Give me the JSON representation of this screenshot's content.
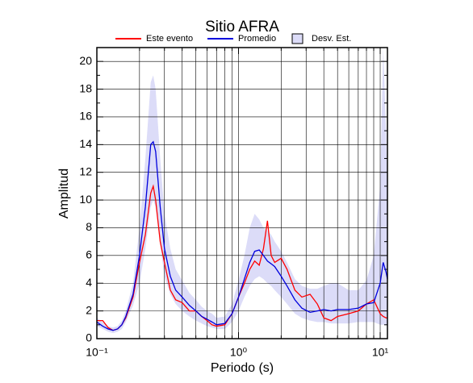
{
  "chart_data": {
    "type": "line",
    "title": "Sitio AFRA",
    "x_label": "Periodo (s)",
    "y_label": "Amplitud",
    "x_scale": "log",
    "grid": true,
    "xlim": [
      0.1,
      11.25
    ],
    "ylim": [
      0,
      21
    ],
    "xticks": [
      {
        "value": 0.1,
        "label": "10⁻¹"
      },
      {
        "value": 1,
        "label": "10⁰"
      },
      {
        "value": 10,
        "label": "10¹"
      }
    ],
    "xminorticks": [
      0.2,
      0.3,
      0.4,
      0.5,
      0.6,
      0.7,
      0.8,
      0.9,
      2,
      3,
      4,
      5,
      6,
      7,
      8,
      9
    ],
    "yticks": [
      0,
      2,
      4,
      6,
      8,
      10,
      12,
      14,
      16,
      18,
      20
    ],
    "yminorticks": [
      1,
      3,
      5,
      7,
      9,
      11,
      13,
      15,
      17,
      19
    ],
    "x": [
      0.1,
      0.11,
      0.12,
      0.13,
      0.14,
      0.15,
      0.16,
      0.18,
      0.2,
      0.22,
      0.24,
      0.25,
      0.26,
      0.28,
      0.3,
      0.33,
      0.36,
      0.4,
      0.45,
      0.5,
      0.55,
      0.6,
      0.65,
      0.7,
      0.8,
      0.9,
      1.0,
      1.1,
      1.2,
      1.3,
      1.4,
      1.5,
      1.6,
      1.7,
      1.8,
      2.0,
      2.2,
      2.5,
      2.8,
      3.2,
      3.6,
      4,
      4.5,
      5,
      6,
      7,
      8,
      9,
      10,
      10.5,
      11,
      11.25
    ],
    "band": {
      "name": "Desv. Est.",
      "color": "#dcdcf8",
      "upper": [
        1.5,
        1.2,
        0.9,
        0.8,
        0.9,
        1.3,
        2.0,
        4.0,
        8.0,
        13,
        18.5,
        19,
        18,
        13,
        9,
        6.5,
        5,
        4.2,
        3.3,
        2.8,
        2.3,
        2.0,
        1.8,
        1.5,
        1.6,
        2.5,
        4.2,
        6.0,
        8.0,
        9.0,
        8.6,
        8.0,
        7.8,
        7.5,
        7.0,
        6.3,
        5.5,
        4.3,
        3.8,
        3.6,
        3.6,
        3.8,
        4.0,
        4.0,
        3.5,
        3.5,
        4.2,
        6,
        11,
        21,
        15,
        10
      ],
      "lower": [
        0.9,
        0.7,
        0.5,
        0.4,
        0.5,
        0.7,
        1.2,
        2.4,
        4.0,
        6.5,
        9.5,
        10,
        9.5,
        6.8,
        4.5,
        3.2,
        2.5,
        2.0,
        1.6,
        1.3,
        1.1,
        0.9,
        0.8,
        0.7,
        0.7,
        1.2,
        2.0,
        3.0,
        3.8,
        4.3,
        4.5,
        4.3,
        4.0,
        3.8,
        3.5,
        3.0,
        2.5,
        1.8,
        1.5,
        1.3,
        1.2,
        1.2,
        1.1,
        1.1,
        1.1,
        1.2,
        1.2,
        1.2,
        1.0,
        1.0,
        1.0,
        1.0
      ]
    },
    "series": [
      {
        "name": "Este evento",
        "color": "#ff0000",
        "values": [
          1.3,
          1.3,
          0.8,
          0.6,
          0.7,
          1.0,
          1.5,
          3.0,
          5.5,
          7.5,
          10.5,
          11.0,
          10.0,
          7.0,
          5.5,
          3.5,
          2.8,
          2.6,
          2.0,
          2.0,
          1.6,
          1.3,
          1.0,
          0.9,
          1.0,
          1.8,
          3.0,
          4.0,
          5.0,
          5.6,
          5.3,
          6.5,
          8.5,
          6.0,
          5.5,
          5.8,
          5.0,
          3.5,
          3.0,
          3.2,
          2.5,
          1.5,
          1.3,
          1.6,
          1.8,
          2.0,
          2.5,
          2.8,
          1.8,
          1.6,
          1.5,
          1.5
        ]
      },
      {
        "name": "Promedio",
        "color": "#0000dd",
        "values": [
          1.2,
          0.9,
          0.7,
          0.6,
          0.7,
          1.0,
          1.6,
          3.2,
          6.0,
          9.5,
          14.0,
          14.2,
          13.5,
          9.5,
          6.5,
          4.5,
          3.5,
          3.0,
          2.4,
          2.0,
          1.6,
          1.4,
          1.2,
          1.0,
          1.1,
          1.8,
          3.0,
          4.3,
          5.5,
          6.3,
          6.4,
          6.0,
          5.6,
          5.4,
          5.2,
          4.5,
          3.8,
          2.8,
          2.2,
          1.9,
          2.0,
          2.1,
          2.0,
          2.1,
          2.1,
          2.2,
          2.5,
          2.6,
          4.0,
          5.5,
          4.8,
          4.3
        ]
      }
    ]
  }
}
